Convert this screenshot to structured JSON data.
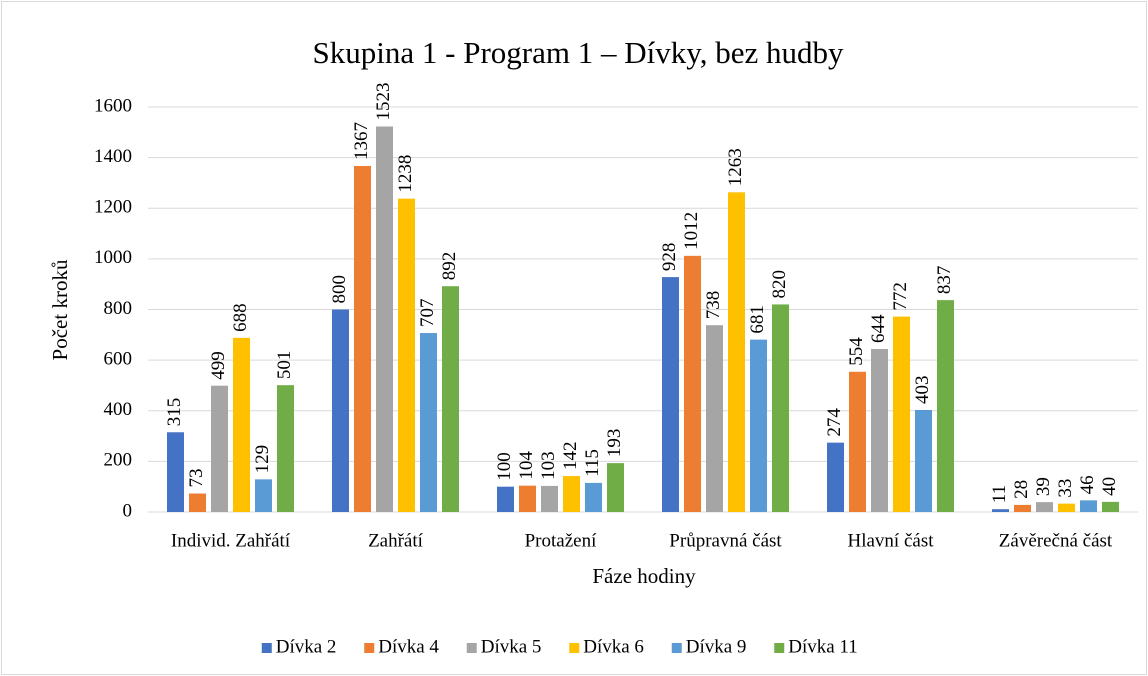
{
  "chart_data": {
    "type": "bar",
    "title": "Skupina 1 - Program 1 – Dívky, bez hudby",
    "x_label": "Fáze hodiny",
    "y_label": "Počet kroků",
    "categories": [
      "Individ. Zahřátí",
      "Zahřátí",
      "Protažení",
      "Průpravná část",
      "Hlavní část",
      "Závěrečná část"
    ],
    "series": [
      {
        "name": "Dívka 2",
        "color": "#4472c4",
        "values": [
          315,
          800,
          100,
          928,
          274,
          11
        ]
      },
      {
        "name": "Dívka 4",
        "color": "#ed7d31",
        "values": [
          73,
          1367,
          104,
          1012,
          554,
          28
        ]
      },
      {
        "name": "Dívka 5",
        "color": "#a5a5a5",
        "values": [
          499,
          1523,
          103,
          738,
          644,
          39
        ]
      },
      {
        "name": "Dívka 6",
        "color": "#ffc000",
        "values": [
          688,
          1238,
          142,
          1263,
          772,
          33
        ]
      },
      {
        "name": "Dívka 9",
        "color": "#5b9bd5",
        "values": [
          129,
          707,
          115,
          681,
          403,
          46
        ]
      },
      {
        "name": "Dívka 11",
        "color": "#70ad47",
        "values": [
          501,
          892,
          193,
          820,
          837,
          40
        ]
      }
    ],
    "ylim": [
      0,
      1600
    ],
    "yticks": [
      0,
      200,
      400,
      600,
      800,
      1000,
      1200,
      1400,
      1600
    ],
    "grid": true,
    "legend": "bottom"
  }
}
